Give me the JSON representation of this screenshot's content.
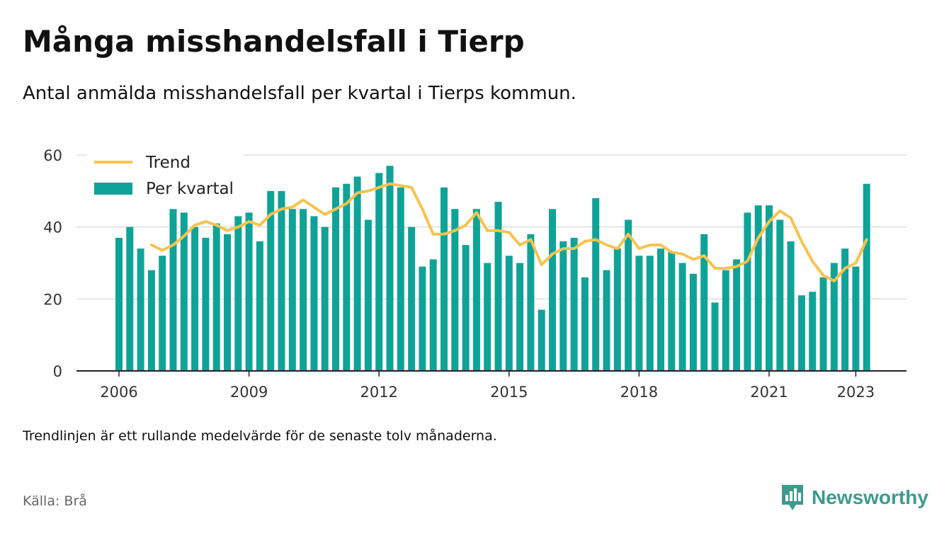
{
  "title": "Många misshandelsfall i Tierp",
  "subtitle": "Antal anmälda misshandelsfall per kvartal i Tierps kommun.",
  "footnote": "Trendlinjen är ett rullande medelvärde för de senaste tolv månaderna.",
  "source": "Källa: Brå",
  "brand": "Newsworthy",
  "colors": {
    "bar": "#0fa398",
    "trend": "#f7c34f",
    "axis": "#222222",
    "grid": "#dddddd",
    "brand": "#3d9a8e"
  },
  "chart_data": {
    "type": "bar",
    "x_start": 2006,
    "ticks_x": [
      "2006",
      "2009",
      "2012",
      "2015",
      "2018",
      "2021",
      "2023"
    ],
    "ticks_y": [
      "0",
      "20",
      "40",
      "60"
    ],
    "ylim": [
      0,
      60
    ],
    "grid": true,
    "legend_position": "top-left",
    "series": [
      {
        "name": "Per kvartal",
        "type": "bar",
        "values": [
          37,
          40,
          34,
          28,
          32,
          45,
          44,
          40,
          37,
          41,
          38,
          43,
          44,
          36,
          50,
          50,
          45,
          45,
          43,
          40,
          51,
          52,
          54,
          42,
          55,
          57,
          51,
          40,
          29,
          31,
          51,
          45,
          35,
          45,
          30,
          47,
          32,
          30,
          38,
          17,
          45,
          36,
          37,
          26,
          48,
          28,
          34,
          42,
          32,
          32,
          34,
          33,
          30,
          27,
          38,
          19,
          28,
          31,
          44,
          46,
          46,
          42,
          36,
          21,
          22,
          26,
          30,
          34,
          29,
          52
        ]
      },
      {
        "name": "Trend",
        "type": "line",
        "values": [
          null,
          null,
          null,
          35,
          33.5,
          35,
          37.5,
          40.5,
          41.5,
          40.5,
          39,
          40,
          41.5,
          40.5,
          43.5,
          45,
          45.5,
          47.5,
          45.5,
          43.5,
          45,
          46.5,
          49.5,
          50,
          51,
          52,
          51.5,
          51,
          45,
          38,
          38,
          39,
          40.5,
          44,
          39,
          39,
          38.5,
          35,
          36.5,
          29.5,
          32.5,
          34,
          34,
          36,
          36.5,
          35,
          34,
          38,
          34,
          35,
          35,
          33,
          32.5,
          31,
          32,
          28.5,
          28.5,
          29,
          30.5,
          37,
          41.5,
          44.5,
          42.5,
          36,
          30.5,
          26.5,
          25,
          28.5,
          30,
          36.5
        ]
      }
    ]
  }
}
